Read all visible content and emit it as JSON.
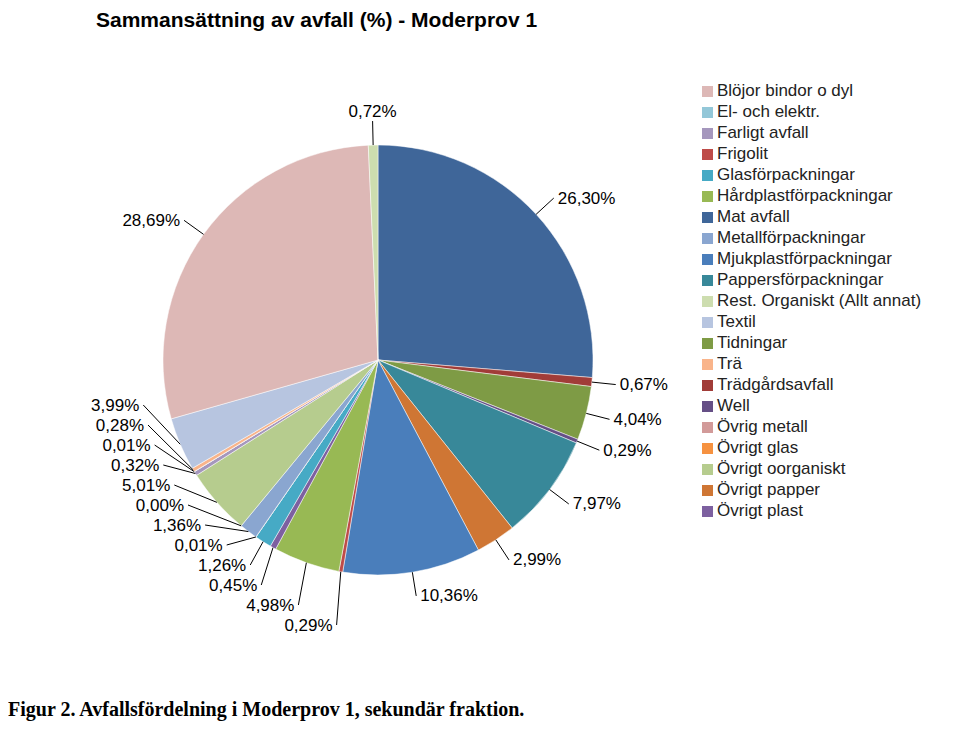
{
  "chart_data": {
    "type": "pie",
    "title": "Sammansättning av avfall (%) - Moderprov 1",
    "caption": "Figur 2. Avfallsfördelning i Moderprov 1, sekundär fraktion.",
    "categories": [
      "Mat avfall",
      "Trädgårdsavfall",
      "Tidningar",
      "Well",
      "Pappersförpackningar",
      "Övrigt papper",
      "Mjukplastförpackningar",
      "Frigolit",
      "Hårdplastförpackningar",
      "Övrigt plast",
      "Glasförpackningar",
      "Övrigt glas",
      "Metallförpackningar",
      "Övrig metall",
      "Övrigt oorganiskt",
      "Farligt avfall",
      "El- och elektr.",
      "Trä",
      "Textil",
      "Blöjor bindor o dyl",
      "Rest. Organiskt (Allt annat)"
    ],
    "values": [
      26.3,
      0.67,
      4.04,
      0.29,
      7.97,
      2.99,
      10.36,
      0.29,
      4.98,
      0.45,
      1.26,
      0.01,
      1.36,
      0.0,
      5.01,
      0.32,
      0.01,
      0.28,
      3.99,
      28.69,
      0.72
    ],
    "value_labels": [
      "26,30%",
      "0,67%",
      "4,04%",
      "0,29%",
      "7,97%",
      "2,99%",
      "10,36%",
      "0,29%",
      "4,98%",
      "0,45%",
      "1,26%",
      "0,01%",
      "1,36%",
      "0,00%",
      "5,01%",
      "0,32%",
      "0,01%",
      "0,28%",
      "3,99%",
      "28,69%",
      "0,72%"
    ],
    "colors": [
      "#3F6699",
      "#A13C38",
      "#7E9B45",
      "#654F86",
      "#388899",
      "#CF7634",
      "#4A7EBB",
      "#BE4B48",
      "#98B954",
      "#7D60A0",
      "#46AAC5",
      "#F69240",
      "#8AA6D0",
      "#D29A99",
      "#B6CC8E",
      "#A597BD",
      "#93C7D8",
      "#F9B48A",
      "#B7C5E0",
      "#DDB8B6",
      "#CDDDAF"
    ],
    "data_labels": true,
    "legend": "right"
  }
}
